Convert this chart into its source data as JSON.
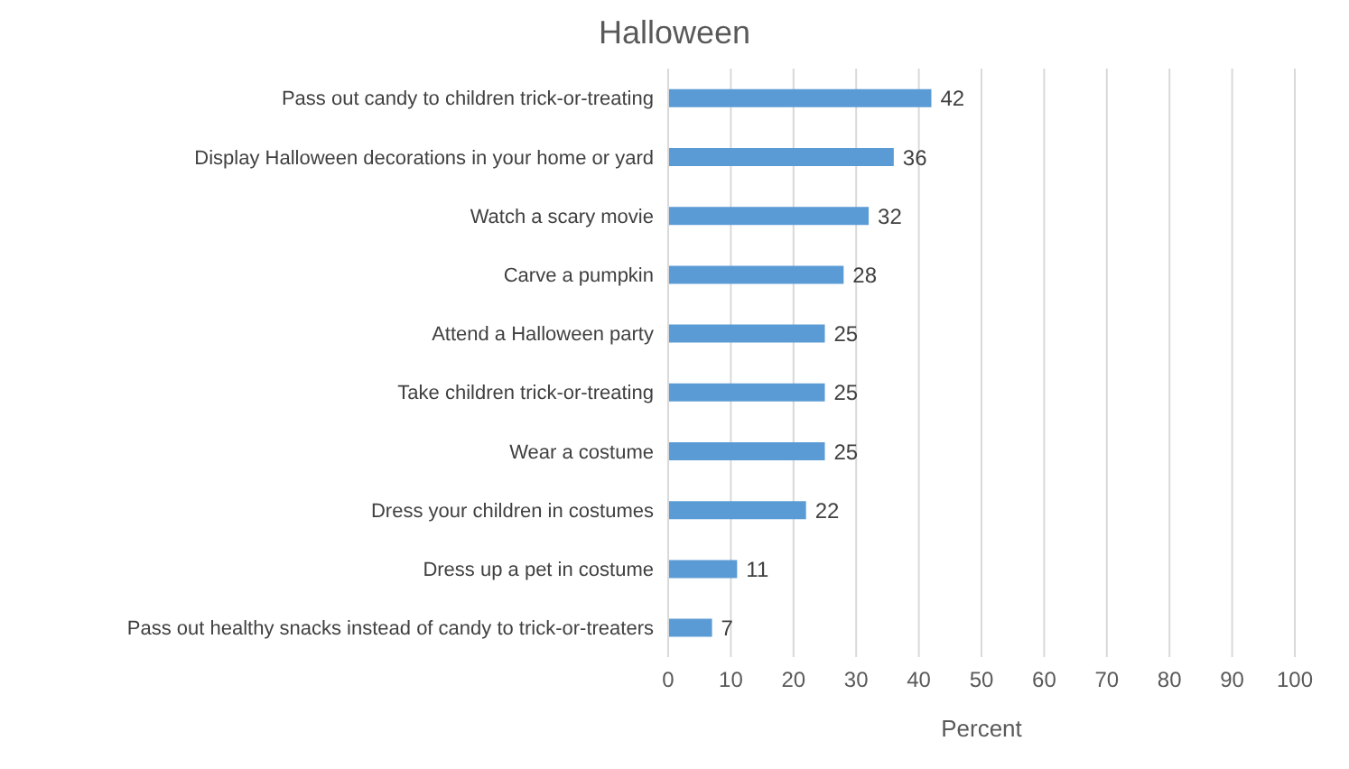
{
  "chart_data": {
    "type": "bar",
    "orientation": "horizontal",
    "title": "Halloween",
    "xlabel": "Percent",
    "categories": [
      "Pass out candy to children trick-or-treating",
      "Display Halloween decorations in your home or yard",
      "Watch a scary movie",
      "Carve a pumpkin",
      "Attend a Halloween party",
      "Take children trick-or-treating",
      "Wear a costume",
      "Dress your children in costumes",
      "Dress up a pet in costume",
      "Pass out healthy snacks instead of candy to trick-or-treaters"
    ],
    "values": [
      42,
      36,
      32,
      28,
      25,
      25,
      25,
      22,
      11,
      7
    ],
    "color": "#5b9bd5",
    "xlim": [
      0,
      100
    ],
    "xticks": [
      0,
      10,
      20,
      30,
      40,
      50,
      60,
      70,
      80,
      90,
      100
    ],
    "grid": "x",
    "data_labels": true
  }
}
